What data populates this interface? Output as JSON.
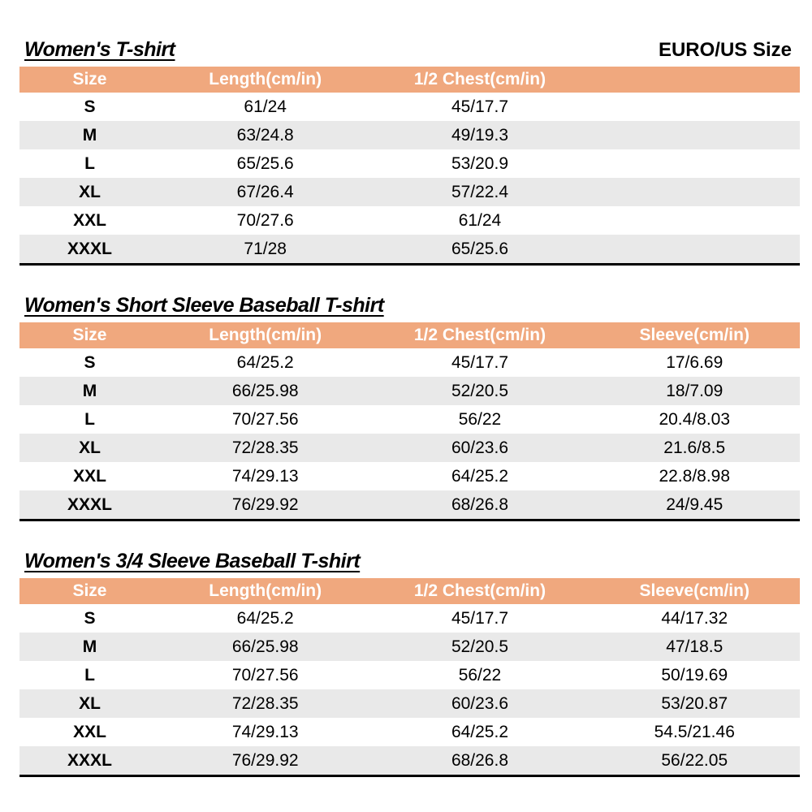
{
  "page": {
    "size_standard_label": "EURO/US Size"
  },
  "theme": {
    "header_bg": "#F0A87E",
    "header_text": "#FFFFFF",
    "stripe_bg": "#E9E9E9",
    "border_color": "#000000"
  },
  "tables": [
    {
      "title": "Women's T-shirt",
      "columns": [
        "Size",
        "Length(cm/in)",
        "1/2 Chest(cm/in)"
      ],
      "rows": [
        [
          "S",
          "61/24",
          "45/17.7"
        ],
        [
          "M",
          "63/24.8",
          "49/19.3"
        ],
        [
          "L",
          "65/25.6",
          "53/20.9"
        ],
        [
          "XL",
          "67/26.4",
          "57/22.4"
        ],
        [
          "XXL",
          "70/27.6",
          "61/24"
        ],
        [
          "XXXL",
          "71/28",
          "65/25.6"
        ]
      ]
    },
    {
      "title": "Women's Short Sleeve Baseball T-shirt",
      "columns": [
        "Size",
        "Length(cm/in)",
        "1/2 Chest(cm/in)",
        "Sleeve(cm/in)"
      ],
      "rows": [
        [
          "S",
          "64/25.2",
          "45/17.7",
          "17/6.69"
        ],
        [
          "M",
          "66/25.98",
          "52/20.5",
          "18/7.09"
        ],
        [
          "L",
          "70/27.56",
          "56/22",
          "20.4/8.03"
        ],
        [
          "XL",
          "72/28.35",
          "60/23.6",
          "21.6/8.5"
        ],
        [
          "XXL",
          "74/29.13",
          "64/25.2",
          "22.8/8.98"
        ],
        [
          "XXXL",
          "76/29.92",
          "68/26.8",
          "24/9.45"
        ]
      ]
    },
    {
      "title": "Women's 3/4 Sleeve Baseball T-shirt",
      "columns": [
        "Size",
        "Length(cm/in)",
        "1/2 Chest(cm/in)",
        "Sleeve(cm/in)"
      ],
      "rows": [
        [
          "S",
          "64/25.2",
          "45/17.7",
          "44/17.32"
        ],
        [
          "M",
          "66/25.98",
          "52/20.5",
          "47/18.5"
        ],
        [
          "L",
          "70/27.56",
          "56/22",
          "50/19.69"
        ],
        [
          "XL",
          "72/28.35",
          "60/23.6",
          "53/20.87"
        ],
        [
          "XXL",
          "74/29.13",
          "64/25.2",
          "54.5/21.46"
        ],
        [
          "XXXL",
          "76/29.92",
          "68/26.8",
          "56/22.05"
        ]
      ]
    }
  ]
}
